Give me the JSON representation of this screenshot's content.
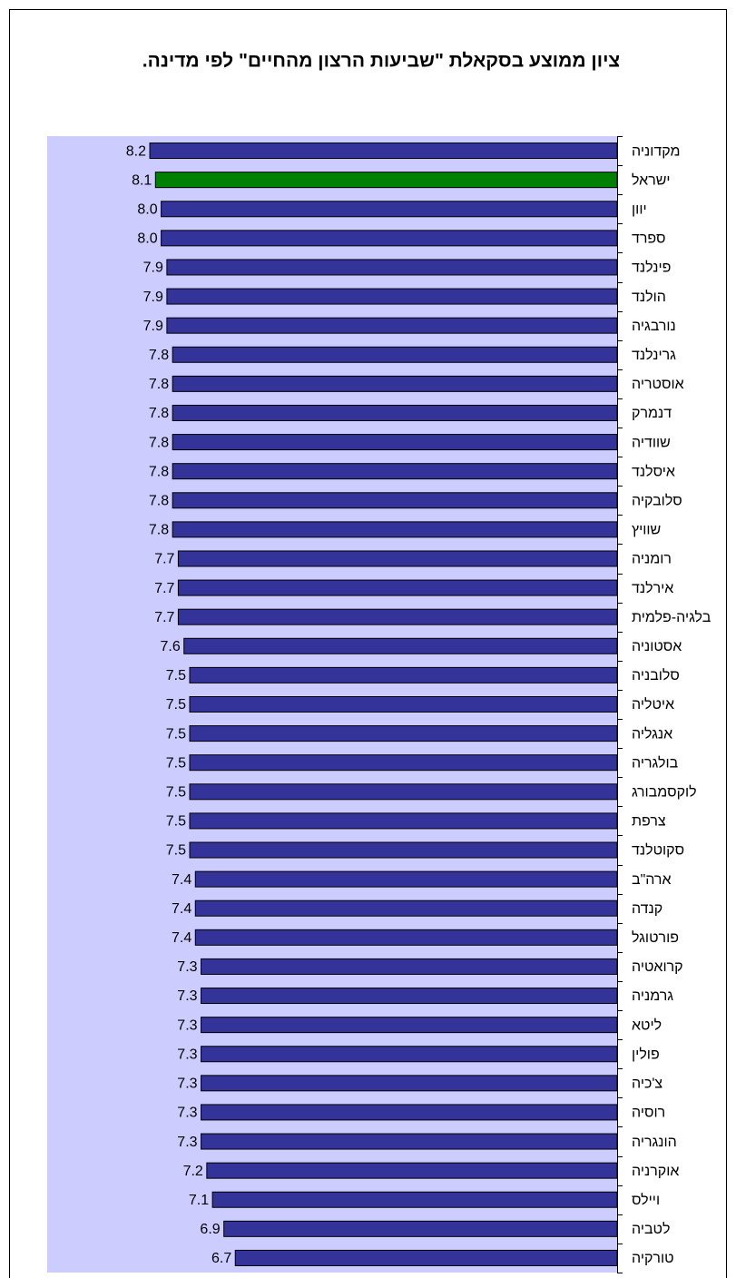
{
  "chart_data": {
    "type": "barh",
    "title": "ציון ממוצע בסקאלת \"שביעות הרצון מהחיים\" לפי מדינה.",
    "categories": [
      "מקדוניה",
      "ישראל",
      "יוון",
      "ספרד",
      "פינלנד",
      "הולנד",
      "נורבגיה",
      "גרינלנד",
      "אוסטריה",
      "דנמרק",
      "שוודיה",
      "איסלנד",
      "סלובקיה",
      "שוויץ",
      "רומניה",
      "אירלנד",
      "בלגיה-פלמית",
      "אסטוניה",
      "סלובניה",
      "איטליה",
      "אנגליה",
      "בולגריה",
      "לוקסמבורג",
      "צרפת",
      "סקוטלנד",
      "ארה\"ב",
      "קנדה",
      "פורטוגל",
      "קרואטיה",
      "גרמניה",
      "ליטא",
      "פולין",
      "צ'כיה",
      "רוסיה",
      "הונגריה",
      "אוקרניה",
      "ויילס",
      "לטביה",
      "טורקיה"
    ],
    "values": [
      8.2,
      8.1,
      8.0,
      8.0,
      7.9,
      7.9,
      7.9,
      7.8,
      7.8,
      7.8,
      7.8,
      7.8,
      7.8,
      7.8,
      7.7,
      7.7,
      7.7,
      7.6,
      7.5,
      7.5,
      7.5,
      7.5,
      7.5,
      7.5,
      7.5,
      7.4,
      7.4,
      7.4,
      7.3,
      7.3,
      7.3,
      7.3,
      7.3,
      7.3,
      7.3,
      7.2,
      7.1,
      6.9,
      6.7
    ],
    "value_labels": [
      "8.2",
      "8.1",
      "8.0",
      "8.0",
      "7.9",
      "7.9",
      "7.9",
      "7.8",
      "7.8",
      "7.8",
      "7.8",
      "7.8",
      "7.8",
      "7.8",
      "7.7",
      "7.7",
      "7.7",
      "7.6",
      "7.5",
      "7.5",
      "7.5",
      "7.5",
      "7.5",
      "7.5",
      "7.5",
      "7.4",
      "7.4",
      "7.4",
      "7.3",
      "7.3",
      "7.3",
      "7.3",
      "7.3",
      "7.3",
      "7.3",
      "7.2",
      "7.1",
      "6.9",
      "6.7"
    ],
    "color": "#333399",
    "highlight": {
      "index": 1,
      "color": "#008000"
    },
    "xlim": [
      0,
      10
    ],
    "background": "#ccccff"
  }
}
